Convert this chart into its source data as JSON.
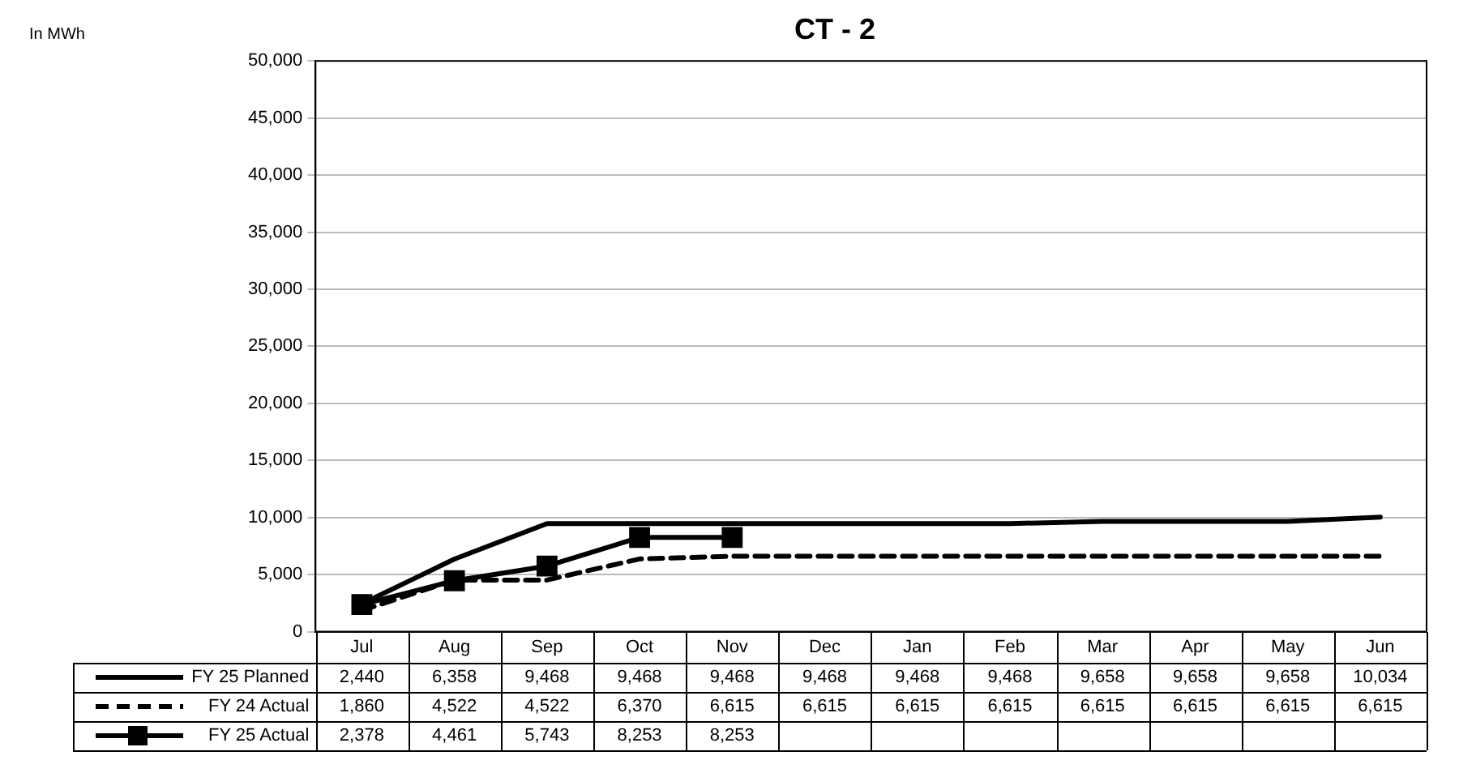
{
  "chart_data": {
    "type": "line",
    "title": "CT - 2",
    "annotations": [
      "In MWh"
    ],
    "categories": [
      "Jul",
      "Aug",
      "Sep",
      "Oct",
      "Nov",
      "Dec",
      "Jan",
      "Feb",
      "Mar",
      "Apr",
      "May",
      "Jun"
    ],
    "series": [
      {
        "name": "FY 25 Planned",
        "color": "#000000",
        "line_style": "solid",
        "marker": "none",
        "values": [
          2440,
          6358,
          9468,
          9468,
          9468,
          9468,
          9468,
          9468,
          9658,
          9658,
          9658,
          10034
        ],
        "value_labels": [
          "2,440",
          "6,358",
          "9,468",
          "9,468",
          "9,468",
          "9,468",
          "9,468",
          "9,468",
          "9,658",
          "9,658",
          "9,658",
          "10,034"
        ]
      },
      {
        "name": "FY 24 Actual",
        "color": "#000000",
        "line_style": "dashed",
        "marker": "none",
        "values": [
          1860,
          4522,
          4522,
          6370,
          6615,
          6615,
          6615,
          6615,
          6615,
          6615,
          6615,
          6615
        ],
        "value_labels": [
          "1,860",
          "4,522",
          "4,522",
          "6,370",
          "6,615",
          "6,615",
          "6,615",
          "6,615",
          "6,615",
          "6,615",
          "6,615",
          "6,615"
        ]
      },
      {
        "name": "FY 25 Actual",
        "color": "#000000",
        "line_style": "solid",
        "marker": "square",
        "values": [
          2378,
          4461,
          5743,
          8253,
          8253,
          null,
          null,
          null,
          null,
          null,
          null,
          null
        ],
        "value_labels": [
          "2,378",
          "4,461",
          "5,743",
          "8,253",
          "8,253",
          null,
          null,
          null,
          null,
          null,
          null,
          null
        ]
      }
    ],
    "ylim": [
      0,
      50000
    ],
    "yticks": [
      0,
      {
        "value": 5000,
        "label": "5,000"
      },
      {
        "value": 10000,
        "label": "10,000"
      },
      {
        "value": 15000,
        "label": "15,000"
      },
      {
        "value": 20000,
        "label": "20,000"
      },
      {
        "value": 25000,
        "label": "25,000"
      },
      {
        "value": 30000,
        "label": "30,000"
      },
      {
        "value": 35000,
        "label": "35,000"
      },
      {
        "value": 40000,
        "label": "40,000"
      },
      {
        "value": 45000,
        "label": "45,000"
      },
      {
        "value": 50000,
        "label": "50,000"
      }
    ],
    "grid": "y",
    "legend": "bottom"
  }
}
